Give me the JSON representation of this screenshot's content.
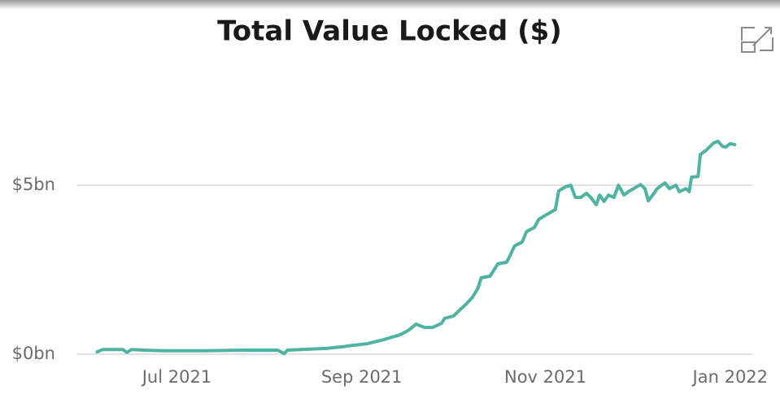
{
  "chart_data": {
    "type": "line",
    "title": "Total Value Locked ($)",
    "color": "#4fb3a2",
    "grid": true,
    "xlim": [
      2021.41,
      2022.02
    ],
    "xticks": [
      {
        "value": 2021.5,
        "label": "Jul 2021"
      },
      {
        "value": 2021.667,
        "label": "Sep 2021"
      },
      {
        "value": 2021.833,
        "label": "Nov 2021"
      },
      {
        "value": 2022.0,
        "label": "Jan 2022"
      }
    ],
    "ylim": [
      0,
      9
    ],
    "yticks": [
      {
        "value": 0,
        "label": "$0bn"
      },
      {
        "value": 5,
        "label": "$5bn"
      }
    ],
    "x": [
      2021.428,
      2021.433,
      2021.44,
      2021.451,
      2021.455,
      2021.459,
      2021.47,
      2021.488,
      2021.525,
      2021.562,
      2021.591,
      2021.597,
      2021.6,
      2021.635,
      2021.65,
      2021.658,
      2021.672,
      2021.687,
      2021.702,
      2021.709,
      2021.716,
      2021.724,
      2021.731,
      2021.739,
      2021.742,
      2021.75,
      2021.757,
      2021.761,
      2021.767,
      2021.772,
      2021.775,
      2021.783,
      2021.79,
      2021.798,
      2021.801,
      2021.805,
      2021.812,
      2021.816,
      2021.823,
      2021.827,
      2021.834,
      2021.842,
      2021.845,
      2021.851,
      2021.856,
      2021.86,
      2021.865,
      2021.87,
      2021.874,
      2021.879,
      2021.882,
      2021.886,
      2021.89,
      2021.895,
      2021.899,
      2021.904,
      2021.908,
      2021.919,
      2021.923,
      2021.926,
      2021.93,
      2021.934,
      2021.941,
      2021.945,
      2021.951,
      2021.954,
      2021.96,
      2021.963,
      2021.965,
      2021.971,
      2021.973,
      2021.978,
      2021.985,
      2021.989,
      2021.993,
      2021.996,
      2022.0,
      2022.004
    ],
    "values": [
      0.07,
      0.14,
      0.14,
      0.14,
      0.05,
      0.14,
      0.12,
      0.1,
      0.1,
      0.12,
      0.12,
      0.02,
      0.12,
      0.17,
      0.22,
      0.26,
      0.31,
      0.43,
      0.58,
      0.7,
      0.89,
      0.79,
      0.79,
      0.91,
      1.06,
      1.13,
      1.35,
      1.47,
      1.68,
      1.95,
      2.26,
      2.31,
      2.67,
      2.72,
      2.91,
      3.2,
      3.32,
      3.63,
      3.75,
      3.99,
      4.13,
      4.28,
      4.83,
      4.95,
      5.0,
      4.64,
      4.64,
      4.76,
      4.64,
      4.42,
      4.71,
      4.52,
      4.71,
      4.64,
      5.0,
      4.71,
      4.81,
      5.02,
      4.9,
      4.54,
      4.71,
      4.9,
      5.07,
      4.9,
      5.0,
      4.81,
      4.9,
      4.81,
      5.24,
      5.26,
      5.91,
      6.03,
      6.25,
      6.3,
      6.15,
      6.13,
      6.23,
      6.2
    ]
  }
}
